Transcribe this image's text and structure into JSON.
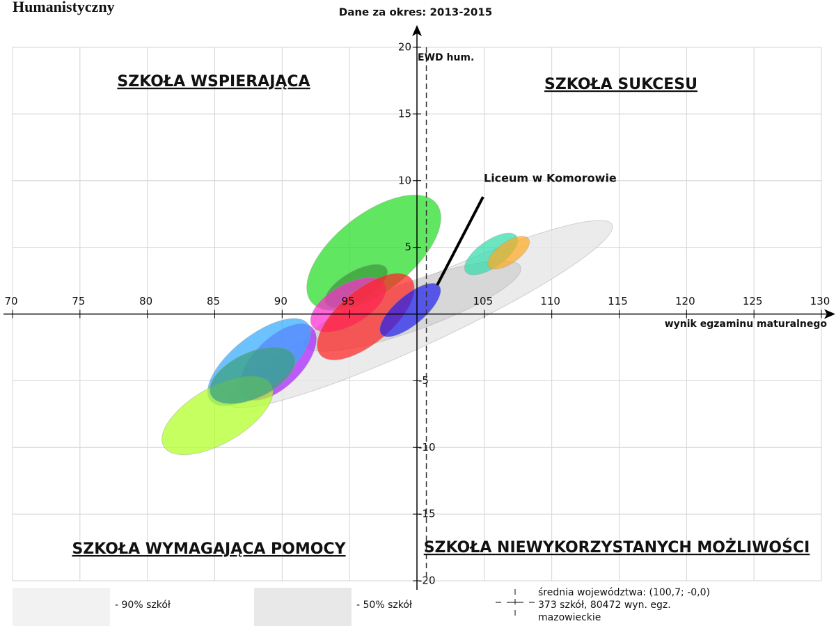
{
  "page_title": "Humanistyczny",
  "chart_data": {
    "type": "scatter",
    "title": "Dane za okres: 2013-2015",
    "xlabel": "wynik egzaminu maturalnego",
    "ylabel": "EWD hum.",
    "xlim": [
      70,
      130
    ],
    "ylim": [
      -20,
      20
    ],
    "xticks": [
      70,
      75,
      80,
      85,
      90,
      95,
      105,
      110,
      115,
      120,
      125,
      130
    ],
    "yticks": [
      -20,
      -15,
      -10,
      -5,
      5,
      10,
      15,
      20
    ],
    "grid": true,
    "quadrants": [
      "SZKOŁA WSPIERAJĄCA",
      "SZKOŁA SUKCESU",
      "SZKOŁA WYMAGAJĄCA POMOCY",
      "SZKOŁA NIEWYKORZYSTANYCH MOŻLIWOŚCI"
    ],
    "bands": [
      {
        "name": "- 90% szkół",
        "color": "#e6e6e6",
        "x": 100.25,
        "y": 0.0,
        "rx": 15.7,
        "ry": 2.3,
        "angle": -25
      },
      {
        "name": "- 50% szkół",
        "color": "#d2d2d2",
        "x": 99.7,
        "y": 0.6,
        "rx": 8.5,
        "ry": 1.8,
        "angle": -20
      }
    ],
    "ellipses": [
      {
        "color": "#22dd22",
        "x": 96.8,
        "y": 4.6,
        "rx": 5.9,
        "ry": 2.9,
        "angle": -38
      },
      {
        "color": "#3a9a3a",
        "x": 95.5,
        "y": 2.1,
        "rx": 2.6,
        "ry": 1.1,
        "angle": -30
      },
      {
        "color": "#ff2ad0",
        "x": 94.9,
        "y": 0.7,
        "rx": 3.1,
        "ry": 1.5,
        "angle": -30
      },
      {
        "color": "#ff2222",
        "x": 96.2,
        "y": -0.2,
        "rx": 4.4,
        "ry": 2.0,
        "angle": -40
      },
      {
        "color": "#2222ee",
        "x": 99.5,
        "y": 0.3,
        "rx": 2.8,
        "ry": 1.1,
        "angle": -40
      },
      {
        "color": "#33ddaa",
        "x": 105.5,
        "y": 4.5,
        "rx": 2.3,
        "ry": 1.0,
        "angle": -35
      },
      {
        "color": "#ffaa22",
        "x": 106.8,
        "y": 4.6,
        "rx": 1.8,
        "ry": 0.8,
        "angle": -35
      },
      {
        "color": "#aa22ff",
        "x": 89.7,
        "y": -3.6,
        "rx": 3.6,
        "ry": 1.8,
        "angle": -45
      },
      {
        "color": "#33aaff",
        "x": 88.3,
        "y": -3.6,
        "rx": 4.6,
        "ry": 2.0,
        "angle": -38
      },
      {
        "color": "#b0ff22",
        "x": 85.2,
        "y": -7.6,
        "rx": 4.6,
        "ry": 2.1,
        "angle": -30
      },
      {
        "color": "#3aa080",
        "x": 87.8,
        "y": -4.6,
        "rx": 3.4,
        "ry": 1.7,
        "angle": -25
      }
    ],
    "annotation": "Liceum w Komorowie",
    "mean_x": 100.7,
    "mean_lines": [
      "średnia województwa: (100,7; -0,0)",
      "373 szkół, 80472 wyn. egz.",
      "mazowieckie"
    ]
  }
}
